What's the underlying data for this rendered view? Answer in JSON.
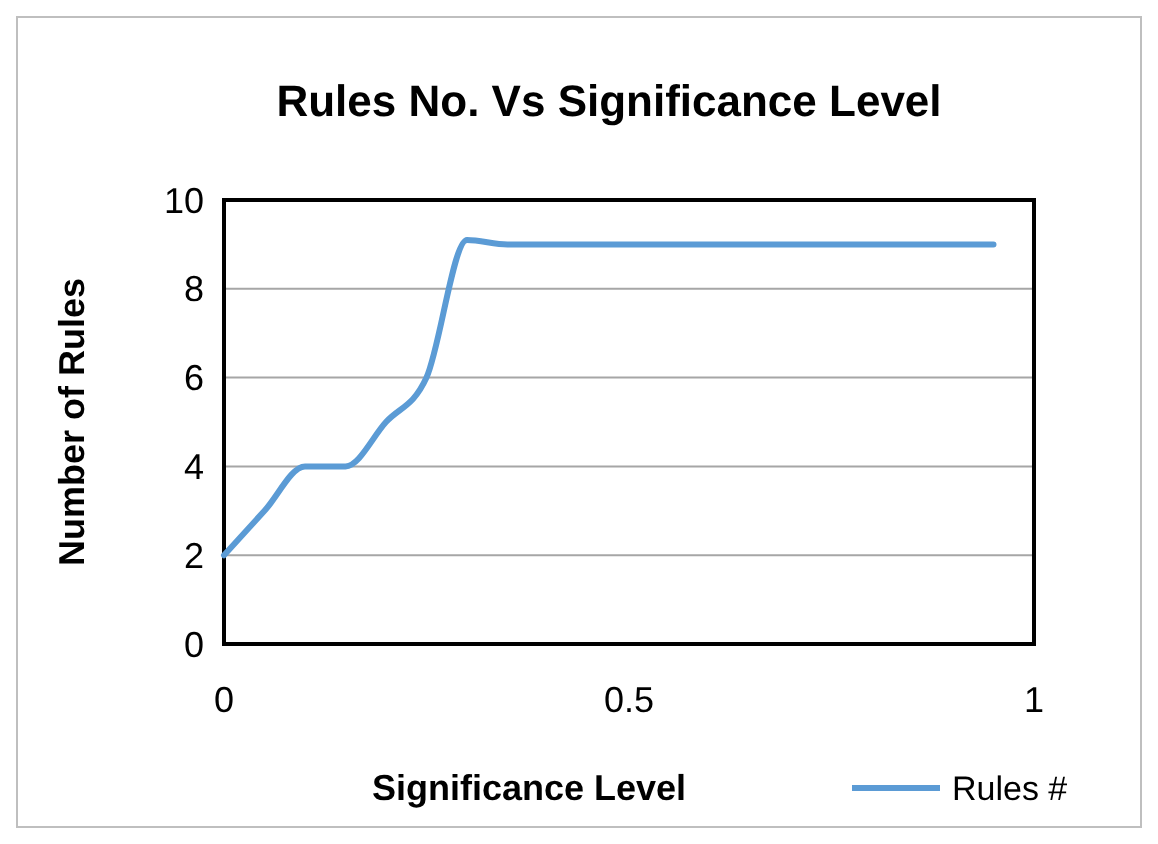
{
  "chart_data": {
    "type": "line",
    "title": "Rules No. Vs Significance  Level",
    "xlabel": "Significance Level",
    "ylabel": "Number of Rules",
    "x": [
      0,
      0.05,
      0.1,
      0.15,
      0.2,
      0.25,
      0.3,
      0.35,
      0.5,
      0.75,
      0.95
    ],
    "series": [
      {
        "name": "Rules #",
        "color": "#5b9bd5",
        "values": [
          2,
          3,
          4,
          4,
          5,
          6,
          9.1,
          9,
          9,
          9,
          9
        ]
      }
    ],
    "xlim": [
      0,
      1
    ],
    "xticks": [
      0,
      0.5,
      1
    ],
    "ylim": [
      0,
      10
    ],
    "yticks": [
      0,
      2,
      4,
      6,
      8,
      10
    ],
    "grid": "y",
    "legend": "bottom right",
    "marker": "none",
    "line_style": "solid"
  }
}
